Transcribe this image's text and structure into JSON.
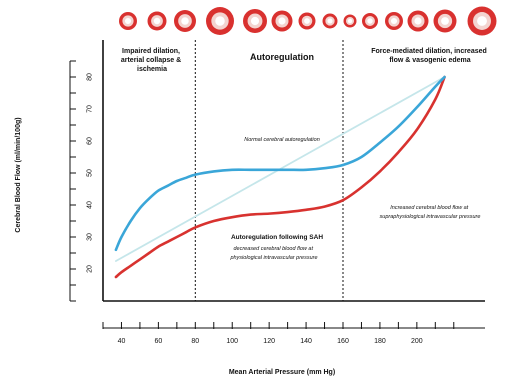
{
  "chart_data": {
    "type": "line",
    "xlabel": "Mean Arterial Pressure (mm Hg)",
    "ylabel": "Cerebral Blood Flow (ml/min/100g)",
    "xlim": [
      30,
      225
    ],
    "ylim": [
      10,
      90
    ],
    "x_ticks": [
      40,
      60,
      80,
      100,
      120,
      140,
      160,
      180,
      200
    ],
    "y_ticks": [
      20,
      30,
      40,
      50,
      60,
      70,
      80
    ],
    "region_dividers": [
      80,
      160
    ],
    "regions": [
      {
        "label": "Impaired dilation, arterial collapse & ischemia"
      },
      {
        "label": "Autoregulation"
      },
      {
        "label": "Force-mediated dilation, increased flow & vasogenic edema"
      }
    ],
    "series": [
      {
        "color": "#3aa6d8",
        "x": [
          37,
          40,
          45,
          50,
          55,
          60,
          65,
          70,
          75,
          80,
          90,
          100,
          110,
          120,
          130,
          140,
          150,
          160,
          170,
          180,
          190,
          200,
          210,
          215
        ],
        "y": [
          26,
          30,
          35,
          39,
          42,
          44.5,
          46,
          47.5,
          48.5,
          49.5,
          50.5,
          51,
          51,
          51,
          51,
          51,
          51.5,
          52.5,
          55,
          59.5,
          64.5,
          70.5,
          77,
          80
        ]
      },
      {
        "color": "#d8322f",
        "x": [
          37,
          40,
          45,
          50,
          55,
          60,
          65,
          70,
          75,
          80,
          90,
          100,
          110,
          120,
          130,
          140,
          150,
          160,
          170,
          180,
          190,
          200,
          210,
          215
        ],
        "y": [
          17.5,
          19,
          21,
          23,
          25,
          27,
          28.5,
          30,
          31.5,
          33,
          35,
          36.2,
          37,
          37.3,
          37.8,
          38.5,
          39.5,
          41.5,
          45.5,
          50.5,
          56.5,
          63.5,
          73,
          80
        ]
      },
      {
        "color": "#c5e6ea",
        "x": [
          37,
          215
        ],
        "y": [
          22.5,
          80
        ]
      }
    ],
    "annotations": [
      {
        "text": "Normal cerebral autoregulation",
        "style": "italic"
      },
      {
        "text": "Autoregulation following SAH",
        "style": "bold"
      },
      {
        "text": "decreased cerebral blood flow at physiological intravascular pressure",
        "lines": [
          "decreased cerebral blood flow at",
          "physiological intravascular pressure"
        ],
        "style": "italic"
      },
      {
        "text": "Increased cerebral blood flow at supraphysiological intravascular pressure",
        "lines": [
          "Increased cerebral blood flow at",
          "supraphysiological intravascular pressure"
        ],
        "style": "italic"
      }
    ],
    "vessel_icons": {
      "count": 15,
      "outer_color": "#d9312f",
      "inner_color": "#f3d4d0"
    },
    "grid": false
  }
}
